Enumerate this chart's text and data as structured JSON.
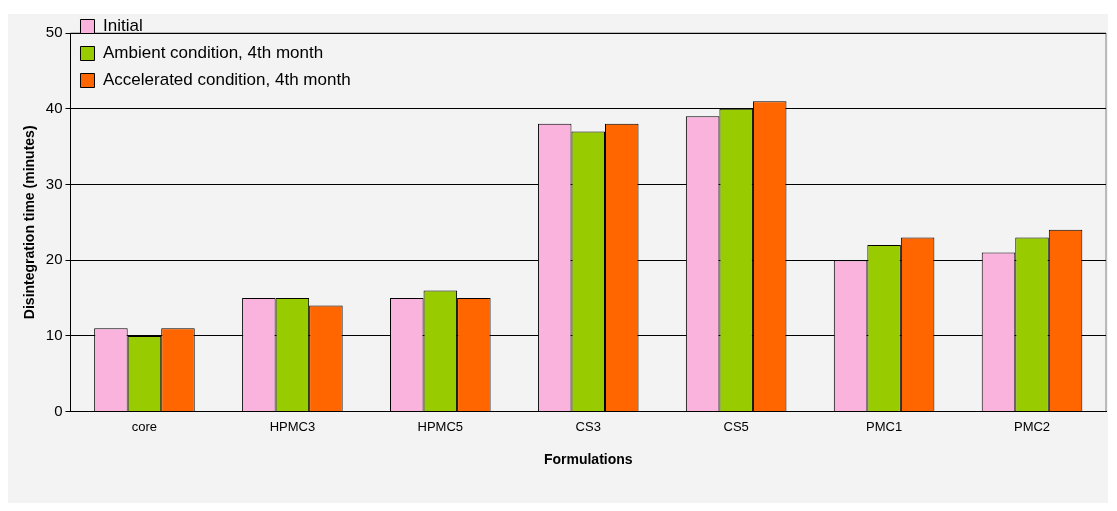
{
  "chart_data": {
    "type": "bar",
    "xlabel": "Formulations",
    "ylabel": "Disintegration time (minutes)",
    "categories": [
      "core",
      "HPMC3",
      "HPMC5",
      "CS3",
      "CS5",
      "PMC1",
      "PMC2"
    ],
    "series": [
      {
        "name": "Initial",
        "color": "#f9b3dd",
        "values": [
          11,
          15,
          15,
          38,
          39,
          20,
          21
        ]
      },
      {
        "name": "Ambient condition, 4th month",
        "color": "#99cc00",
        "values": [
          10,
          15,
          16,
          37,
          40,
          22,
          23
        ]
      },
      {
        "name": "Accelerated condition, 4th month",
        "color": "#ff6600",
        "values": [
          11,
          14,
          15,
          38,
          41,
          23,
          24
        ]
      }
    ],
    "ylim": [
      0,
      50
    ],
    "yticks": [
      0,
      10,
      20,
      30,
      40,
      50
    ],
    "grid": "y",
    "legend": "top left"
  }
}
